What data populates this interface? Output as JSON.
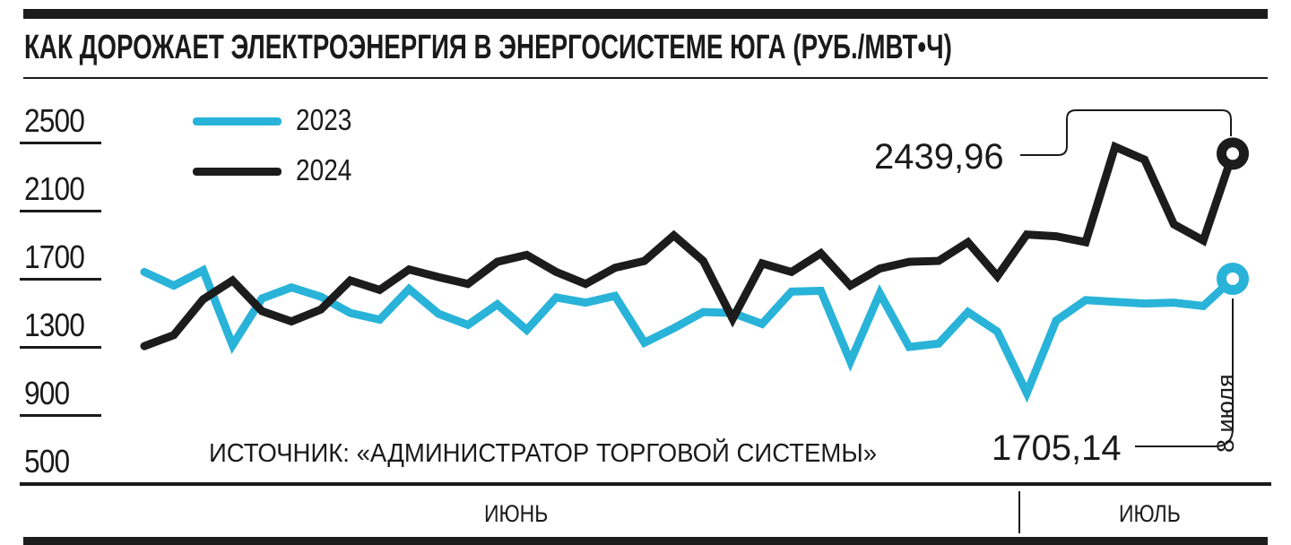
{
  "chart_data": {
    "type": "line",
    "title": "КАК ДОРОЖАЕТ ЭЛЕКТРОЭНЕРГИЯ В ЭНЕРГОСИСТЕМЕ ЮГА (РУБ./МВТ•Ч)",
    "y_ticks": [
      2500,
      2100,
      1700,
      1300,
      900,
      500
    ],
    "y_range": [
      500,
      2500
    ],
    "grid": false,
    "legend_position": "top-left",
    "x_axis": {
      "june": "ИЮНЬ",
      "july": "ИЮЛЬ",
      "june_days": 30,
      "july_days": 8
    },
    "series": [
      {
        "name": "2023",
        "color": "#29b3d8",
        "values": [
          1745,
          1665,
          1755,
          1315,
          1590,
          1655,
          1600,
          1505,
          1465,
          1645,
          1500,
          1435,
          1555,
          1405,
          1595,
          1565,
          1605,
          1330,
          1415,
          1510,
          1505,
          1440,
          1630,
          1635,
          1220,
          1620,
          1305,
          1325,
          1510,
          1395,
          1035,
          1460,
          1580,
          1570,
          1560,
          1565,
          1545,
          1705.14
        ]
      },
      {
        "name": "2024",
        "color": "#1c1c1c",
        "values": [
          1310,
          1375,
          1585,
          1695,
          1515,
          1455,
          1525,
          1695,
          1640,
          1760,
          1715,
          1675,
          1805,
          1845,
          1745,
          1675,
          1770,
          1810,
          1960,
          1810,
          1470,
          1795,
          1745,
          1855,
          1665,
          1765,
          1805,
          1810,
          1920,
          1720,
          1965,
          1955,
          1920,
          2480,
          2405,
          2025,
          1930,
          2439.96
        ]
      }
    ],
    "annotations": {
      "last_2024": {
        "text": "2439,96",
        "series": "2024"
      },
      "last_2023": {
        "text": "1705,14",
        "series": "2023"
      },
      "date_label": "8 июля"
    },
    "source": "ИСТОЧНИК: «АДМИНИСТРАТОР ТОРГОВОЙ СИСТЕМЫ»"
  }
}
